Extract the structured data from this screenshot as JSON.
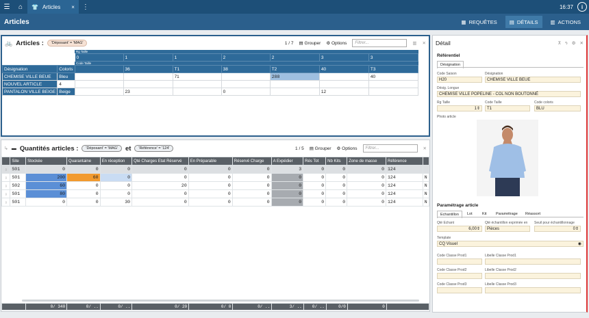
{
  "topbar": {
    "tab_label": "Articles",
    "tab_close": "×",
    "more": "⋮",
    "time": "16:37",
    "info": "i"
  },
  "title": {
    "text": "Articles",
    "btn_requetes": "REQUÊTES",
    "btn_details": "DÉTAILS",
    "btn_actions": "ACTIONS"
  },
  "articles": {
    "title": "Articles :",
    "chip": "'Déposant' = 'MAG'",
    "count": "1 / 7",
    "group_label": "Grouper",
    "options_label": "Options",
    "filter_placeholder": "Filtrer...",
    "rg_label": "Rg Taille",
    "code_label": "Code Taille",
    "rg_values": [
      "0",
      "1",
      "1",
      "2",
      "2",
      "3",
      "3"
    ],
    "code_values": [
      "",
      "36",
      "T1",
      "38",
      "T2",
      "40",
      "T3"
    ],
    "col_designation": "Désignation",
    "col_colors": "Coloris",
    "rows": [
      {
        "name": "CHEMISE VILLE BEUE",
        "color": "Bleu",
        "cells": [
          "",
          "",
          "71",
          "",
          "288",
          "",
          "40"
        ]
      },
      {
        "name": "NOUVEL ARTICLE",
        "color": "4",
        "cells": [
          "",
          "",
          "",
          "",
          "",
          "",
          ""
        ]
      },
      {
        "name": "PANTALON VILLE BEIGE",
        "color": "Beige",
        "cells": [
          "",
          "23",
          "",
          "0",
          "",
          "12",
          ""
        ]
      }
    ]
  },
  "quantites": {
    "title": "Quantités articles :",
    "chip1": "'Déposant' = 'MAG'",
    "et": "et",
    "chip2": "'Référence' = '124'",
    "count": "1 / 5",
    "group_label": "Grouper",
    "options_label": "Options",
    "filter_placeholder": "Filtrer...",
    "headers": [
      "Site",
      "Stockée",
      "Quarantaine",
      "En réception",
      "Qté Charges Etat Réservé",
      "En Préparable",
      "Réservé Charge",
      "A Expédier",
      "Rés Tot",
      "Nb Kits",
      "Zone de masse",
      "Référence",
      ""
    ],
    "rows": [
      [
        "S01",
        "0",
        "0",
        "0",
        "0",
        "0",
        "0",
        "3",
        "0",
        "0",
        "0",
        "124",
        ""
      ],
      [
        "S01",
        "200",
        "60",
        "0",
        "0",
        "0",
        "0",
        "0",
        "0",
        "0",
        "0",
        "124",
        "N"
      ],
      [
        "S02",
        "60",
        "0",
        "0",
        "20",
        "0",
        "0",
        "0",
        "0",
        "0",
        "0",
        "124",
        "N"
      ],
      [
        "S01",
        "80",
        "0",
        "0",
        "0",
        "0",
        "0",
        "0",
        "0",
        "0",
        "0",
        "124",
        "N"
      ],
      [
        "S01",
        "0",
        "0",
        "30",
        "0",
        "0",
        "0",
        "0",
        "0",
        "0",
        "0",
        "124",
        "N"
      ]
    ],
    "footer": [
      "",
      "0/ 340",
      "0/ ..",
      "0/ ..",
      "0/ 20",
      "0/ 0",
      "0/ ..",
      "3/ ..",
      "0/ ..",
      "0/0",
      "0",
      ""
    ]
  },
  "detail": {
    "title": "Détail",
    "section_ref": "Référentiel",
    "tab_designation": "Désignation",
    "code_saison_label": "Code Saison",
    "code_saison": "H20",
    "designation_label": "Désignation",
    "designation": "CHEMISE VILLE BEUE",
    "desig_longue_label": "Désig. Longue",
    "desig_longue": "CHEMISE VILLE POPELINE - COL NON BOUTONNÉ",
    "rg_taille_label": "Rg Taille",
    "rg_taille": "1",
    "code_taille_label": "Code Taille",
    "code_taille": "T1",
    "code_coloris_label": "Code coloris",
    "code_coloris": "BLU",
    "photo_label": "Photo article",
    "section_param": "Paramétrage article",
    "tabs": [
      "Echantillon",
      "Lot",
      "Kit",
      "Paramétrage",
      "Réassort"
    ],
    "qte_ech_label": "Qté Echant",
    "qte_ech": "6,00",
    "qte_unit_label": "Qté échantillon exprimée en",
    "qte_unit": "Pièces",
    "seuil_label": "Seuil pour échantillonnage",
    "seuil": "0",
    "template_label": "Template",
    "template": "CQ Visuel",
    "classes": [
      [
        "Code Classe Prod1",
        "Libelle Classe Prod1"
      ],
      [
        "Code Classe Prod2",
        "Libelle Classe Prod2"
      ],
      [
        "Code Classe Prod3",
        "Libelle Classe Prod3"
      ]
    ]
  }
}
